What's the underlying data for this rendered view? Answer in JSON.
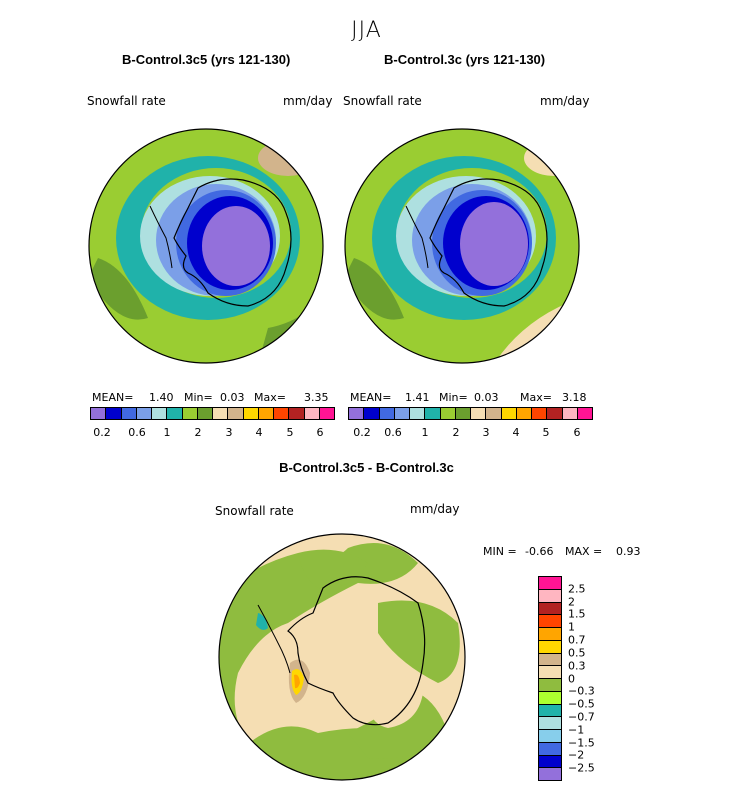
{
  "figure": {
    "title": "JJA"
  },
  "units": "mm/day",
  "field_label": "Snowfall rate",
  "colors": {
    "abs": [
      "#9370db",
      "#0000cd",
      "#4169e1",
      "#7b9fe8",
      "#aee0e0",
      "#20b2aa",
      "#9acd32",
      "#6b9f2e",
      "#f5deb3",
      "#d2b48c",
      "#ffd700",
      "#ffa500",
      "#ff4500",
      "#b22222",
      "#ffb6c1",
      "#ff1493"
    ],
    "diff": [
      "#ff1493",
      "#ffb6c1",
      "#b22222",
      "#ff4500",
      "#ffa500",
      "#ffd700",
      "#d2b48c",
      "#f5deb3",
      "#8fbc3f",
      "#adff2f",
      "#20b2aa",
      "#aee0e0",
      "#87ceeb",
      "#4169e1",
      "#0000cd",
      "#9370db"
    ],
    "coast": "#000000"
  },
  "panels": [
    {
      "title": "B-Control.3c5 (yrs 121-130)",
      "field_label": "Snowfall rate",
      "units": "mm/day",
      "mean_label": "MEAN=",
      "mean": "1.40",
      "min_label": "Min=",
      "min": "0.03",
      "max_label": "Max=",
      "max": "3.35"
    },
    {
      "title": "B-Control.3c (yrs 121-130)",
      "field_label": "Snowfall rate",
      "units": "mm/day",
      "mean_label": "MEAN=",
      "mean": "1.41",
      "min_label": "Min=",
      "min": "0.03",
      "max_label": "Max=",
      "max": "3.18"
    }
  ],
  "colorbar_ticks": [
    "0.2",
    "0.6",
    "1",
    "2",
    "3",
    "4",
    "5",
    "6"
  ],
  "diff_panel": {
    "title": "B-Control.3c5 - B-Control.3c",
    "field_label": "Snowfall rate",
    "units": "mm/day",
    "min_label": "MIN =",
    "min": "-0.66",
    "max_label": "MAX =",
    "max": "0.93",
    "colorbar_ticks": [
      "2.5",
      "2",
      "1.5",
      "1",
      "0.7",
      "0.5",
      "0.3",
      "0",
      "−0.3",
      "−0.5",
      "−0.7",
      "−1",
      "−1.5",
      "−2",
      "−2.5"
    ]
  },
  "chart_data": [
    {
      "type": "heatmap",
      "projection": "south polar stereographic",
      "title": "B-Control.3c5 (yrs 121-130)",
      "variable": "Snowfall rate",
      "units": "mm/day",
      "stats": {
        "mean": 1.4,
        "min": 0.03,
        "max": 3.35
      },
      "contour_levels": [
        0.2,
        0.4,
        0.6,
        0.8,
        1,
        1.5,
        2,
        2.5,
        3,
        3.5,
        4,
        4.5,
        5,
        5.5,
        6
      ]
    },
    {
      "type": "heatmap",
      "projection": "south polar stereographic",
      "title": "B-Control.3c (yrs 121-130)",
      "variable": "Snowfall rate",
      "units": "mm/day",
      "stats": {
        "mean": 1.41,
        "min": 0.03,
        "max": 3.18
      },
      "contour_levels": [
        0.2,
        0.4,
        0.6,
        0.8,
        1,
        1.5,
        2,
        2.5,
        3,
        3.5,
        4,
        4.5,
        5,
        5.5,
        6
      ]
    },
    {
      "type": "heatmap",
      "projection": "south polar stereographic",
      "title": "B-Control.3c5 - B-Control.3c",
      "variable": "Snowfall rate",
      "units": "mm/day",
      "stats": {
        "min": -0.66,
        "max": 0.93
      },
      "contour_levels": [
        -2.5,
        -2,
        -1.5,
        -1,
        -0.7,
        -0.5,
        -0.3,
        0,
        0.3,
        0.5,
        0.7,
        1,
        1.5,
        2,
        2.5
      ]
    }
  ]
}
